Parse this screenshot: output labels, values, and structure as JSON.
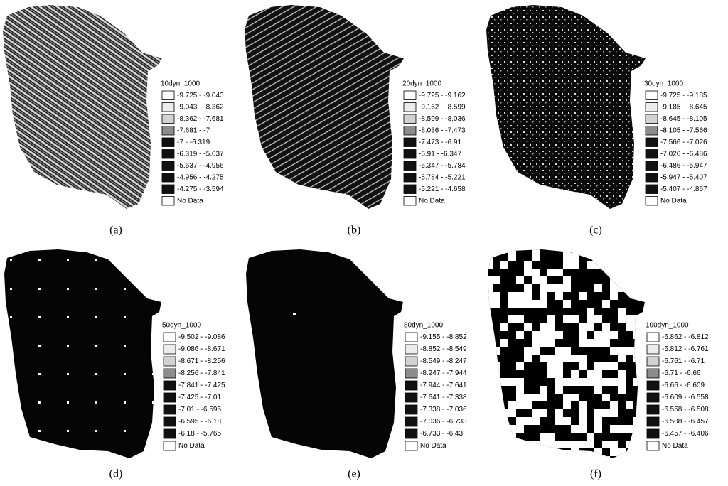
{
  "panels": [
    {
      "label": "(a)",
      "legend_title": "10dyn_1000",
      "classes": [
        "-9.725 - -9.043",
        "-9.043 - -8.362",
        "-8.362 - -7.681",
        "-7.681 - -7",
        "-7 - -6.319",
        "-6.319 - -5.637",
        "-5.637 - -4.956",
        "-4.956 - -4.275",
        "-4.275 - -3.594"
      ],
      "no_data": "No Data"
    },
    {
      "label": "(b)",
      "legend_title": "20dyn_1000",
      "classes": [
        "-9.725 - -9.162",
        "-9.162 - -8.599",
        "-8.599 - -8.036",
        "-8.036 - -7.473",
        "-7.473 - -6.91",
        "-6.91 - -6.347",
        "-6.347 - -5.784",
        "-5.784 - -5.221",
        "-5.221 - -4.658"
      ],
      "no_data": "No Data"
    },
    {
      "label": "(c)",
      "legend_title": "30dyn_1000",
      "classes": [
        "-9.725 - -9.185",
        "-9.185 - -8.645",
        "-8.645 - -8.105",
        "-8.105 - -7.566",
        "-7.566 - -7.026",
        "-7.026 - -6.486",
        "-6.486 - -5.947",
        "-5.947 - -5.407",
        "-5.407 - -4.867"
      ],
      "no_data": "No Data"
    },
    {
      "label": "(d)",
      "legend_title": "50dyn_1000",
      "classes": [
        "-9.502 - -9.086",
        "-9.086 - -8.671",
        "-8.671 - -8.256",
        "-8.256 - -7.841",
        "-7.841 - -7.425",
        "-7.425 - -7.01",
        "-7.01 - -6.595",
        "-6.595 - -6.18",
        "-6.18 - -5.765"
      ],
      "no_data": "No Data"
    },
    {
      "label": "(e)",
      "legend_title": "80dyn_1000",
      "classes": [
        "-9.155 - -8.852",
        "-8.852 - -8.549",
        "-8.549 - -8.247",
        "-8.247 - -7.944",
        "-7.944 - -7.641",
        "-7.641 - -7.338",
        "-7.338 - -7.036",
        "-7.036 - -6.733",
        "-6.733 - -6.43"
      ],
      "no_data": "No Data"
    },
    {
      "label": "(f)",
      "legend_title": "100dyn_1000",
      "classes": [
        "-6.862 - -6.812",
        "-6.812 - -6.761",
        "-6.761 - -6.71",
        "-6.71 - -6.66",
        "-6.66 - -6.609",
        "-6.609 - -6.558",
        "-6.558 - -6.508",
        "-6.508 - -6.457",
        "-6.457 - -6.406"
      ],
      "no_data": "No Data"
    }
  ]
}
